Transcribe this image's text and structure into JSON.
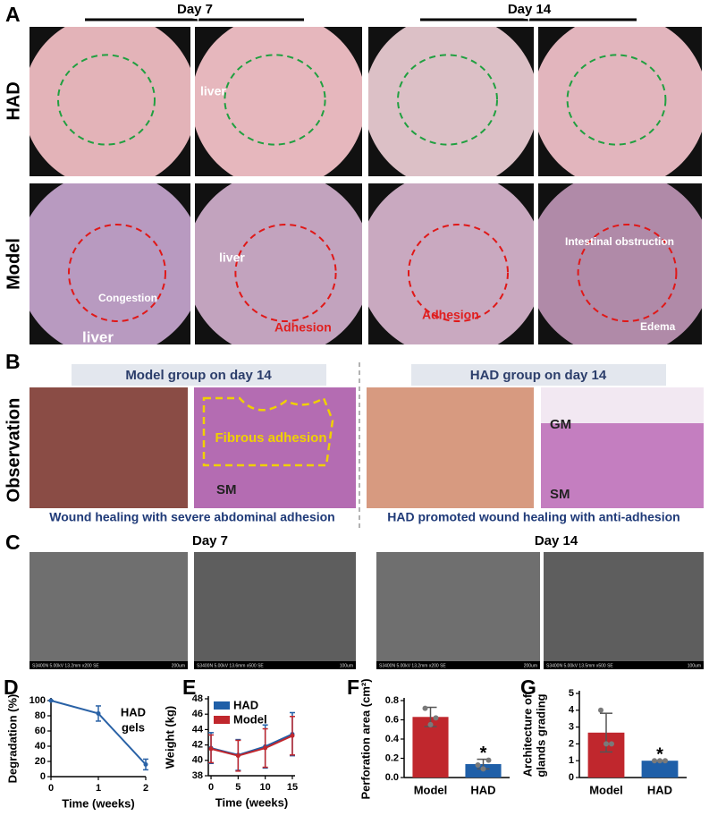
{
  "panel_labels": [
    "A",
    "B",
    "C"
  ],
  "panel_a": {
    "columns": [
      "Day 7",
      "Day 14"
    ],
    "rows": [
      "HAD",
      "Model"
    ],
    "annotations": [
      "liver",
      "liver",
      "Congestion",
      "liver",
      "Adhesion",
      "Adhesion",
      "Intestinal obstruction",
      "Edema"
    ]
  },
  "panel_b": {
    "side_label": "Observation",
    "groups": [
      {
        "title": "Model group on day 14",
        "labels": [
          "Fibrous adhesion",
          "SM"
        ],
        "caption": "Wound healing with severe abdominal adhesion"
      },
      {
        "title": "HAD group on day 14",
        "labels": [
          "GM",
          "SM"
        ],
        "caption": "HAD promoted wound healing with anti-adhesion"
      }
    ]
  },
  "panel_c": {
    "columns": [
      "Day 7",
      "Day 14"
    ],
    "images": [
      {
        "info": "S3400N 5.00kV 13.2mm x200 SE",
        "scale": "200um"
      },
      {
        "info": "S3400N 5.00kV 13.6mm x500 SE",
        "scale": "100um"
      },
      {
        "info": "S3400N 5.00kV 13.2mm x200 SE",
        "scale": "200um"
      },
      {
        "info": "S3400N 5.00kV 13.5mm x500 SE",
        "scale": "100um"
      }
    ]
  },
  "chart_data": [
    {
      "type": "line",
      "panel_label": "D",
      "xlabel": "Time (weeks)",
      "ylabel": "Degradation (%)",
      "annotation_lines": [
        "HAD",
        "gels"
      ],
      "x": [
        0,
        1,
        2
      ],
      "values": [
        100,
        83,
        16
      ],
      "errors": [
        0,
        10,
        7
      ],
      "color": "#2a62a6",
      "xlim": [
        0,
        2
      ],
      "xticks": [
        0,
        1,
        2
      ],
      "ylim": [
        0,
        100
      ],
      "yticks": [
        0,
        20,
        40,
        60,
        80,
        100
      ]
    },
    {
      "type": "line",
      "panel_label": "E",
      "xlabel": "Time (weeks)",
      "ylabel": "Weight (kg)",
      "legend": "top-left",
      "x": [
        0,
        5,
        10,
        15
      ],
      "series": [
        {
          "name": "HAD",
          "color": "#1f5fa8",
          "values": [
            41.6,
            40.7,
            41.8,
            43.4
          ],
          "errors": [
            2,
            2,
            2.8,
            2.8
          ]
        },
        {
          "name": "Model",
          "color": "#c0272d",
          "values": [
            41.5,
            40.6,
            41.6,
            43.2
          ],
          "errors": [
            1.8,
            2,
            2.5,
            2.5
          ]
        }
      ],
      "xlim": [
        -0.5,
        15.5
      ],
      "xticks": [
        0,
        5,
        10,
        15
      ],
      "ylim": [
        38,
        48
      ],
      "yticks": [
        38,
        40,
        42,
        44,
        46,
        48
      ]
    },
    {
      "type": "bar",
      "panel_label": "F",
      "ylabel": "Perforation area (cm²)",
      "significance_label": "*",
      "categories": [
        "Model",
        "HAD"
      ],
      "values": [
        0.63,
        0.14
      ],
      "errors": [
        0.1,
        0.05
      ],
      "colors": [
        "#c0272d",
        "#1f5fa8"
      ],
      "points": [
        [
          0.72,
          0.62,
          0.55
        ],
        [
          0.13,
          0.18,
          0.09
        ]
      ],
      "ylim": [
        0,
        0.8
      ],
      "yticks": [
        {
          "value": 0,
          "label": "0.0"
        },
        0.2,
        0.4,
        0.6,
        0.8
      ]
    },
    {
      "type": "bar",
      "panel_label": "G",
      "ylabel": [
        "Architecture of",
        "glands grading"
      ],
      "significance_label": "*",
      "categories": [
        "Model",
        "HAD"
      ],
      "values": [
        2.67,
        1
      ],
      "errors": [
        1.15,
        0
      ],
      "colors": [
        "#c0272d",
        "#1f5fa8"
      ],
      "points": [
        [
          4,
          2,
          2
        ],
        [
          1,
          1,
          1
        ]
      ],
      "ylim": [
        0,
        5
      ],
      "yticks": [
        0,
        1,
        2,
        3,
        4,
        5
      ]
    }
  ]
}
